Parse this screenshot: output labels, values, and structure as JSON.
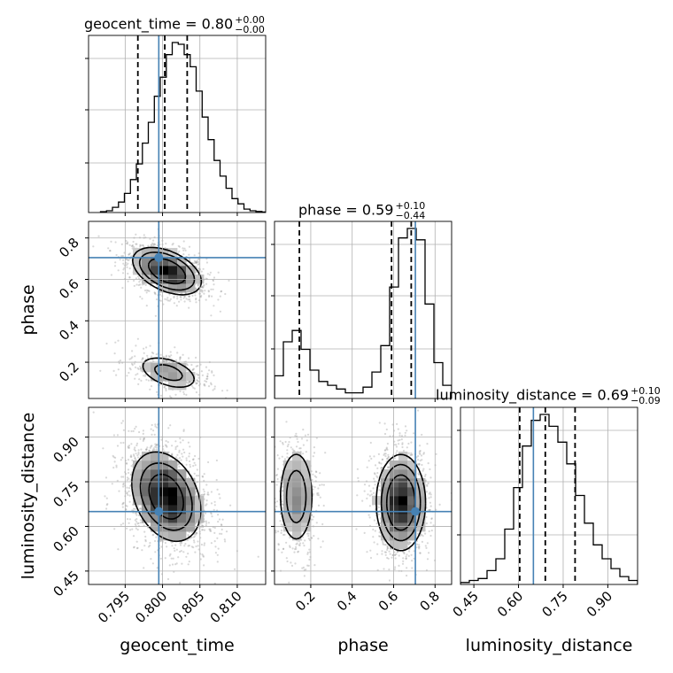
{
  "chart_data": {
    "type": "corner",
    "params": [
      "geocent_time",
      "phase",
      "luminosity_distance"
    ],
    "axis_labels": {
      "geocent_time": "geocent_time",
      "phase": "phase",
      "luminosity_distance": "luminosity_distance"
    },
    "injection_values": {
      "geocent_time": 0.7995,
      "phase": 0.705,
      "luminosity_distance": 0.65
    },
    "axis_ranges": {
      "geocent_time": [
        0.7901,
        0.8138
      ],
      "phase": [
        0.025,
        0.88
      ],
      "luminosity_distance": [
        0.405,
        1.0
      ]
    },
    "ticks": {
      "geocent_time": {
        "values": [
          0.795,
          0.8,
          0.805,
          0.81
        ],
        "labels": [
          "0.795",
          "0.800",
          "0.805",
          "0.810"
        ]
      },
      "phase": {
        "values": [
          0.2,
          0.4,
          0.6,
          0.8
        ],
        "labels": [
          "0.2",
          "0.4",
          "0.6",
          "0.8"
        ]
      },
      "luminosity_distance": {
        "values": [
          0.45,
          0.6,
          0.75,
          0.9
        ],
        "labels": [
          "0.45",
          "0.60",
          "0.75",
          "0.90"
        ]
      }
    },
    "marginals": {
      "geocent_time": {
        "title": "geocent_time = 0.80",
        "sup": "+0.00",
        "sub": "−0.00",
        "quantiles": [
          0.7967,
          0.8003,
          0.8033
        ],
        "bins_start": 0.7917,
        "bin_width": 0.0008,
        "counts": [
          0.5,
          1,
          3,
          6,
          11,
          19,
          28,
          40,
          52,
          67,
          78,
          91,
          98,
          97,
          91,
          84,
          70,
          55,
          42,
          30,
          21,
          14,
          8,
          5,
          2,
          1,
          0.6,
          0.3
        ]
      },
      "phase": {
        "title": "phase = 0.59",
        "sup": "+0.10",
        "sub": "−0.44",
        "quantiles": [
          0.145,
          0.59,
          0.685
        ],
        "bins_start": 0.025,
        "bin_width": 0.04275,
        "counts": [
          12,
          30,
          36,
          26,
          15,
          9,
          7,
          5,
          3,
          3,
          6,
          14,
          28,
          59,
          85,
          90,
          84,
          50,
          19,
          7
        ]
      },
      "luminosity_distance": {
        "title": "luminosity_distance = 0.69",
        "sup": "+0.10",
        "sub": "−0.09",
        "quantiles": [
          0.604,
          0.69,
          0.79
        ],
        "bins_start": 0.405,
        "bin_width": 0.02975,
        "counts": [
          1,
          2,
          3,
          7,
          13,
          28,
          49,
          70,
          83,
          86,
          80,
          72,
          61,
          45,
          31,
          20,
          13,
          8,
          4,
          2
        ]
      }
    },
    "joint": {
      "phase_vs_geocent_time": {
        "modes": [
          {
            "x": 0.8006,
            "y": 0.64,
            "sx": 0.0021,
            "sy": 0.052,
            "rho": -0.45,
            "w": 0.78
          },
          {
            "x": 0.8008,
            "y": 0.15,
            "sx": 0.0022,
            "sy": 0.045,
            "rho": -0.45,
            "w": 0.22
          }
        ]
      },
      "luminosity_distance_vs_geocent_time": {
        "modes": [
          {
            "x": 0.8005,
            "y": 0.7,
            "sx": 0.0023,
            "sy": 0.075,
            "rho": -0.3,
            "w": 1.0
          }
        ]
      },
      "luminosity_distance_vs_phase": {
        "modes": [
          {
            "x": 0.13,
            "y": 0.7,
            "sx": 0.045,
            "sy": 0.085,
            "rho": 0.0,
            "w": 0.27
          },
          {
            "x": 0.635,
            "y": 0.68,
            "sx": 0.055,
            "sy": 0.075,
            "rho": 0.0,
            "w": 0.73
          }
        ]
      }
    },
    "colors": {
      "truth": "#4682b4",
      "hist": "#000000",
      "grid": "#b0b0b0",
      "quantile": "#000000"
    },
    "grid": true
  }
}
